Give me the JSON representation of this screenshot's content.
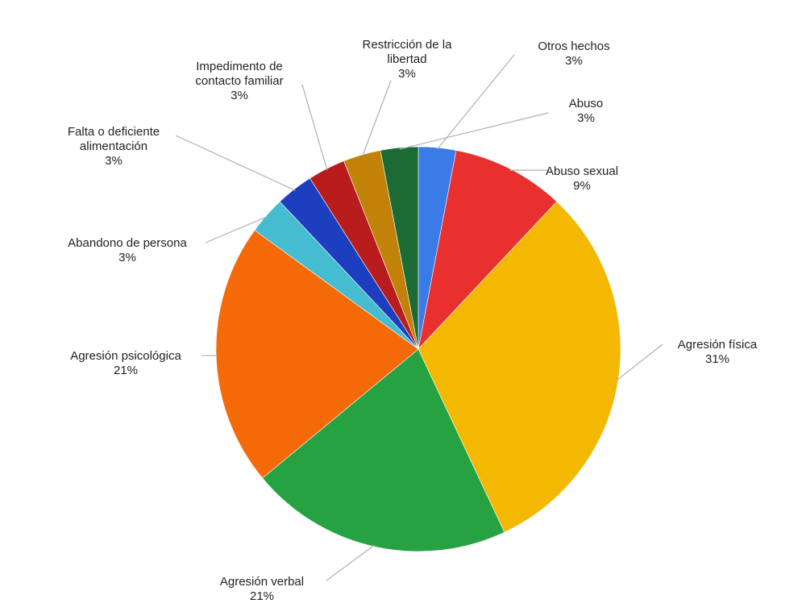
{
  "chart_data": {
    "type": "pie",
    "title": "",
    "start_angle_deg": 0,
    "direction": "clockwise",
    "slices": [
      {
        "label_lines": [
          "Otros hechos"
        ],
        "pct_label": "3%",
        "value": 3,
        "color": "#3b7be8"
      },
      {
        "label_lines": [
          "Abuso sexual"
        ],
        "pct_label": "9%",
        "value": 9,
        "color": "#e8302e"
      },
      {
        "label_lines": [
          "Agresión física"
        ],
        "pct_label": "31%",
        "value": 31,
        "color": "#f5b800"
      },
      {
        "label_lines": [
          "Agresión verbal"
        ],
        "pct_label": "21%",
        "value": 21,
        "color": "#27a243"
      },
      {
        "label_lines": [
          "Agresión psicológica"
        ],
        "pct_label": "21%",
        "value": 21,
        "color": "#f56a08"
      },
      {
        "label_lines": [
          "Abandono de persona"
        ],
        "pct_label": "3%",
        "value": 3,
        "color": "#45bcd0"
      },
      {
        "label_lines": [
          "Falta o deficiente",
          "alimentación"
        ],
        "pct_label": "3%",
        "value": 3,
        "color": "#1d3fbf"
      },
      {
        "label_lines": [
          "Impedimento de",
          "contacto familiar"
        ],
        "pct_label": "3%",
        "value": 3,
        "color": "#b81c1c"
      },
      {
        "label_lines": [
          "Restricción de la",
          "libertad"
        ],
        "pct_label": "3%",
        "value": 3,
        "color": "#c2820a"
      },
      {
        "label_lines": [
          "Abuso"
        ],
        "pct_label": "3%",
        "value": 3,
        "color": "#1c6b34"
      }
    ]
  }
}
